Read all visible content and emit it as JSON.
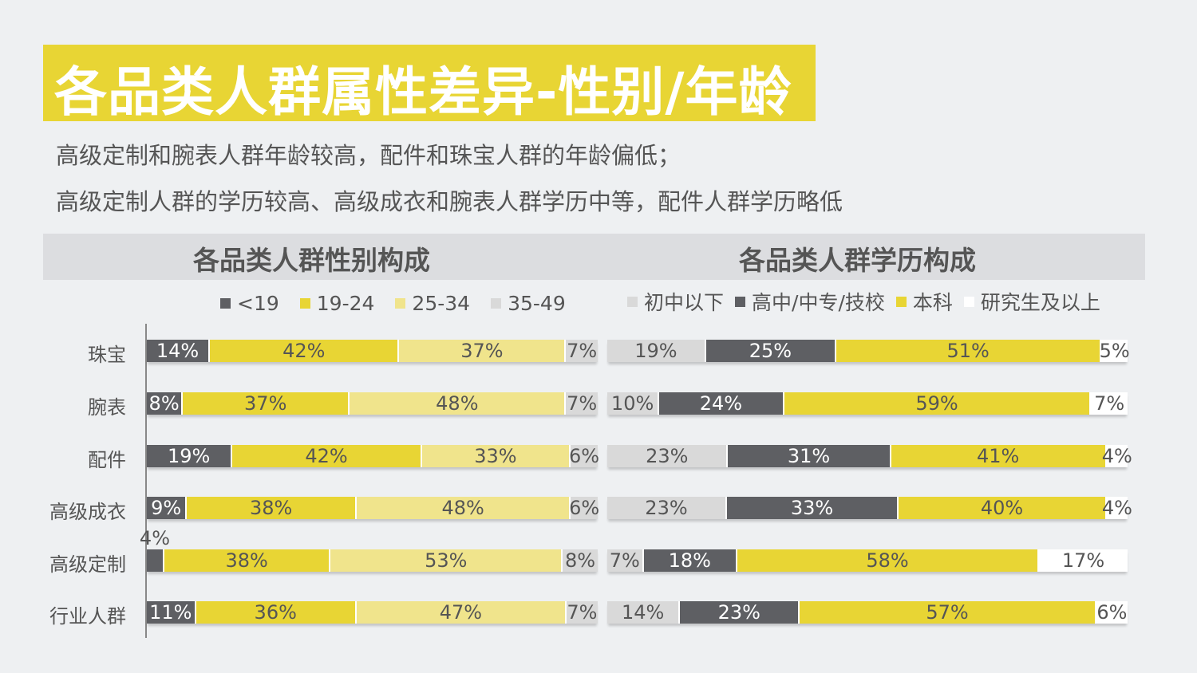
{
  "page": {
    "title": "各品类人群属性差异-性别/年龄",
    "lines": [
      "高级定制和腕表人群年龄较高，配件和珠宝人群的年龄偏低；",
      "高级定制人群的学历较高、高级成衣和腕表人群学历中等，配件人群学历略低"
    ]
  },
  "colors": {
    "dark": "#5e5f63",
    "yellow": "#e8d534",
    "light_yellow": "#f0e48c",
    "light_gray": "#d9d9d9",
    "white": "#ffffff"
  },
  "chart_data": [
    {
      "type": "bar",
      "orientation": "horizontal",
      "stacked": true,
      "title": "各品类人群性别构成",
      "legend_position": "top",
      "categories": [
        "珠宝",
        "腕表",
        "配件",
        "高级成衣",
        "高级定制",
        "行业人群"
      ],
      "series": [
        {
          "name": "<19",
          "color": "#5e5f63",
          "values": [
            14,
            8,
            19,
            9,
            4,
            11
          ]
        },
        {
          "name": "19-24",
          "color": "#e8d534",
          "values": [
            42,
            37,
            42,
            38,
            38,
            36
          ]
        },
        {
          "name": "25-34",
          "color": "#f0e48c",
          "values": [
            37,
            48,
            33,
            48,
            53,
            47
          ]
        },
        {
          "name": "35-49",
          "color": "#d9d9d9",
          "values": [
            7,
            7,
            6,
            6,
            8,
            7
          ]
        }
      ],
      "unit": "%"
    },
    {
      "type": "bar",
      "orientation": "horizontal",
      "stacked": true,
      "title": "各品类人群学历构成",
      "legend_position": "top",
      "categories": [
        "珠宝",
        "腕表",
        "配件",
        "高级成衣",
        "高级定制",
        "行业人群"
      ],
      "series": [
        {
          "name": "初中以下",
          "color": "#d9d9d9",
          "values": [
            19,
            10,
            23,
            23,
            7,
            14
          ]
        },
        {
          "name": "高中/中专/技校",
          "color": "#5e5f63",
          "values": [
            25,
            24,
            31,
            33,
            18,
            23
          ]
        },
        {
          "name": "本科",
          "color": "#e8d534",
          "values": [
            51,
            59,
            41,
            40,
            58,
            57
          ]
        },
        {
          "name": "研究生及以上",
          "color": "#ffffff",
          "values": [
            5,
            7,
            4,
            4,
            17,
            6
          ]
        }
      ],
      "unit": "%"
    }
  ]
}
